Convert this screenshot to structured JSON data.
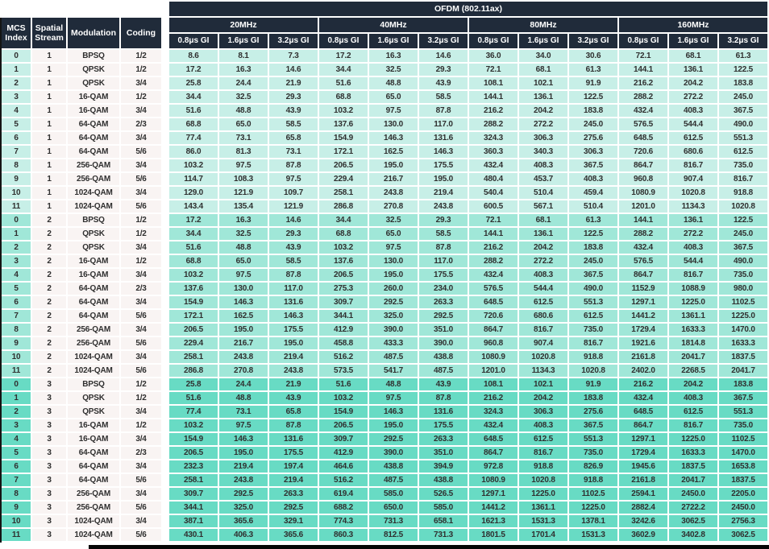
{
  "colors": {
    "header-navy": "#202b3a",
    "stream1": "#c7efe7",
    "stream2": "#a0e7d8",
    "stream3": "#68dbc4",
    "light-col": "#f9f4f3"
  },
  "table": {
    "banner": "OFDM (802.11ax)",
    "left_headers": [
      "MCS Index",
      "Spatial Stream",
      "Modulation",
      "Coding"
    ],
    "bandwidth_groups": [
      "20MHz",
      "40MHz",
      "80MHz",
      "160MHz"
    ],
    "gi_labels": [
      "0.8μs GI",
      "1.6μs GI",
      "3.2μs GI"
    ],
    "rows": [
      {
        "mcs": "0",
        "stream": "1",
        "modulation": "BPSQ",
        "coding": "1/2",
        "rates": [
          "8.6",
          "8.1",
          "7.3",
          "17.2",
          "16.3",
          "14.6",
          "36.0",
          "34.0",
          "30.6",
          "72.1",
          "68.1",
          "61.3"
        ]
      },
      {
        "mcs": "1",
        "stream": "1",
        "modulation": "QPSK",
        "coding": "1/2",
        "rates": [
          "17.2",
          "16.3",
          "14.6",
          "34.4",
          "32.5",
          "29.3",
          "72.1",
          "68.1",
          "61.3",
          "144.1",
          "136.1",
          "122.5"
        ]
      },
      {
        "mcs": "2",
        "stream": "1",
        "modulation": "QPSK",
        "coding": "3/4",
        "rates": [
          "25.8",
          "24.4",
          "21.9",
          "51.6",
          "48.8",
          "43.9",
          "108.1",
          "102.1",
          "91.9",
          "216.2",
          "204.2",
          "183.8"
        ]
      },
      {
        "mcs": "3",
        "stream": "1",
        "modulation": "16-QAM",
        "coding": "1/2",
        "rates": [
          "34.4",
          "32.5",
          "29.3",
          "68.8",
          "65.0",
          "58.5",
          "144.1",
          "136.1",
          "122.5",
          "288.2",
          "272.2",
          "245.0"
        ]
      },
      {
        "mcs": "4",
        "stream": "1",
        "modulation": "16-QAM",
        "coding": "3/4",
        "rates": [
          "51.6",
          "48.8",
          "43.9",
          "103.2",
          "97.5",
          "87.8",
          "216.2",
          "204.2",
          "183.8",
          "432.4",
          "408.3",
          "367.5"
        ]
      },
      {
        "mcs": "5",
        "stream": "1",
        "modulation": "64-QAM",
        "coding": "2/3",
        "rates": [
          "68.8",
          "65.0",
          "58.5",
          "137.6",
          "130.0",
          "117.0",
          "288.2",
          "272.2",
          "245.0",
          "576.5",
          "544.4",
          "490.0"
        ]
      },
      {
        "mcs": "6",
        "stream": "1",
        "modulation": "64-QAM",
        "coding": "3/4",
        "rates": [
          "77.4",
          "73.1",
          "65.8",
          "154.9",
          "146.3",
          "131.6",
          "324.3",
          "306.3",
          "275.6",
          "648.5",
          "612.5",
          "551.3"
        ]
      },
      {
        "mcs": "7",
        "stream": "1",
        "modulation": "64-QAM",
        "coding": "5/6",
        "rates": [
          "86.0",
          "81.3",
          "73.1",
          "172.1",
          "162.5",
          "146.3",
          "360.3",
          "340.3",
          "306.3",
          "720.6",
          "680.6",
          "612.5"
        ]
      },
      {
        "mcs": "8",
        "stream": "1",
        "modulation": "256-QAM",
        "coding": "3/4",
        "rates": [
          "103.2",
          "97.5",
          "87.8",
          "206.5",
          "195.0",
          "175.5",
          "432.4",
          "408.3",
          "367.5",
          "864.7",
          "816.7",
          "735.0"
        ]
      },
      {
        "mcs": "9",
        "stream": "1",
        "modulation": "256-QAM",
        "coding": "5/6",
        "rates": [
          "114.7",
          "108.3",
          "97.5",
          "229.4",
          "216.7",
          "195.0",
          "480.4",
          "453.7",
          "408.3",
          "960.8",
          "907.4",
          "816.7"
        ]
      },
      {
        "mcs": "10",
        "stream": "1",
        "modulation": "1024-QAM",
        "coding": "3/4",
        "rates": [
          "129.0",
          "121.9",
          "109.7",
          "258.1",
          "243.8",
          "219.4",
          "540.4",
          "510.4",
          "459.4",
          "1080.9",
          "1020.8",
          "918.8"
        ]
      },
      {
        "mcs": "11",
        "stream": "1",
        "modulation": "1024-QAM",
        "coding": "5/6",
        "rates": [
          "143.4",
          "135.4",
          "121.9",
          "286.8",
          "270.8",
          "243.8",
          "600.5",
          "567.1",
          "510.4",
          "1201.0",
          "1134.3",
          "1020.8"
        ]
      },
      {
        "mcs": "0",
        "stream": "2",
        "modulation": "BPSQ",
        "coding": "1/2",
        "rates": [
          "17.2",
          "16.3",
          "14.6",
          "34.4",
          "32.5",
          "29.3",
          "72.1",
          "68.1",
          "61.3",
          "144.1",
          "136.1",
          "122.5"
        ]
      },
      {
        "mcs": "1",
        "stream": "2",
        "modulation": "QPSK",
        "coding": "1/2",
        "rates": [
          "34.4",
          "32.5",
          "29.3",
          "68.8",
          "65.0",
          "58.5",
          "144.1",
          "136.1",
          "122.5",
          "288.2",
          "272.2",
          "245.0"
        ]
      },
      {
        "mcs": "2",
        "stream": "2",
        "modulation": "QPSK",
        "coding": "3/4",
        "rates": [
          "51.6",
          "48.8",
          "43.9",
          "103.2",
          "97.5",
          "87.8",
          "216.2",
          "204.2",
          "183.8",
          "432.4",
          "408.3",
          "367.5"
        ]
      },
      {
        "mcs": "3",
        "stream": "2",
        "modulation": "16-QAM",
        "coding": "1/2",
        "rates": [
          "68.8",
          "65.0",
          "58.5",
          "137.6",
          "130.0",
          "117.0",
          "288.2",
          "272.2",
          "245.0",
          "576.5",
          "544.4",
          "490.0"
        ]
      },
      {
        "mcs": "4",
        "stream": "2",
        "modulation": "16-QAM",
        "coding": "3/4",
        "rates": [
          "103.2",
          "97.5",
          "87.8",
          "206.5",
          "195.0",
          "175.5",
          "432.4",
          "408.3",
          "367.5",
          "864.7",
          "816.7",
          "735.0"
        ]
      },
      {
        "mcs": "5",
        "stream": "2",
        "modulation": "64-QAM",
        "coding": "2/3",
        "rates": [
          "137.6",
          "130.0",
          "117.0",
          "275.3",
          "260.0",
          "234.0",
          "576.5",
          "544.4",
          "490.0",
          "1152.9",
          "1088.9",
          "980.0"
        ]
      },
      {
        "mcs": "6",
        "stream": "2",
        "modulation": "64-QAM",
        "coding": "3/4",
        "rates": [
          "154.9",
          "146.3",
          "131.6",
          "309.7",
          "292.5",
          "263.3",
          "648.5",
          "612.5",
          "551.3",
          "1297.1",
          "1225.0",
          "1102.5"
        ]
      },
      {
        "mcs": "7",
        "stream": "2",
        "modulation": "64-QAM",
        "coding": "5/6",
        "rates": [
          "172.1",
          "162.5",
          "146.3",
          "344.1",
          "325.0",
          "292.5",
          "720.6",
          "680.6",
          "612.5",
          "1441.2",
          "1361.1",
          "1225.0"
        ]
      },
      {
        "mcs": "8",
        "stream": "2",
        "modulation": "256-QAM",
        "coding": "3/4",
        "rates": [
          "206.5",
          "195.0",
          "175.5",
          "412.9",
          "390.0",
          "351.0",
          "864.7",
          "816.7",
          "735.0",
          "1729.4",
          "1633.3",
          "1470.0"
        ]
      },
      {
        "mcs": "9",
        "stream": "2",
        "modulation": "256-QAM",
        "coding": "5/6",
        "rates": [
          "229.4",
          "216.7",
          "195.0",
          "458.8",
          "433.3",
          "390.0",
          "960.8",
          "907.4",
          "816.7",
          "1921.6",
          "1814.8",
          "1633.3"
        ]
      },
      {
        "mcs": "10",
        "stream": "2",
        "modulation": "1024-QAM",
        "coding": "3/4",
        "rates": [
          "258.1",
          "243.8",
          "219.4",
          "516.2",
          "487.5",
          "438.8",
          "1080.9",
          "1020.8",
          "918.8",
          "2161.8",
          "2041.7",
          "1837.5"
        ]
      },
      {
        "mcs": "11",
        "stream": "2",
        "modulation": "1024-QAM",
        "coding": "5/6",
        "rates": [
          "286.8",
          "270.8",
          "243.8",
          "573.5",
          "541.7",
          "487.5",
          "1201.0",
          "1134.3",
          "1020.8",
          "2402.0",
          "2268.5",
          "2041.7"
        ]
      },
      {
        "mcs": "0",
        "stream": "3",
        "modulation": "BPSQ",
        "coding": "1/2",
        "rates": [
          "25.8",
          "24.4",
          "21.9",
          "51.6",
          "48.8",
          "43.9",
          "108.1",
          "102.1",
          "91.9",
          "216.2",
          "204.2",
          "183.8"
        ]
      },
      {
        "mcs": "1",
        "stream": "3",
        "modulation": "QPSK",
        "coding": "1/2",
        "rates": [
          "51.6",
          "48.8",
          "43.9",
          "103.2",
          "97.5",
          "87.8",
          "216.2",
          "204.2",
          "183.8",
          "432.4",
          "408.3",
          "367.5"
        ]
      },
      {
        "mcs": "2",
        "stream": "3",
        "modulation": "QPSK",
        "coding": "3/4",
        "rates": [
          "77.4",
          "73.1",
          "65.8",
          "154.9",
          "146.3",
          "131.6",
          "324.3",
          "306.3",
          "275.6",
          "648.5",
          "612.5",
          "551.3"
        ]
      },
      {
        "mcs": "3",
        "stream": "3",
        "modulation": "16-QAM",
        "coding": "1/2",
        "rates": [
          "103.2",
          "97.5",
          "87.8",
          "206.5",
          "195.0",
          "175.5",
          "432.4",
          "408.3",
          "367.5",
          "864.7",
          "816.7",
          "735.0"
        ]
      },
      {
        "mcs": "4",
        "stream": "3",
        "modulation": "16-QAM",
        "coding": "3/4",
        "rates": [
          "154.9",
          "146.3",
          "131.6",
          "309.7",
          "292.5",
          "263.3",
          "648.5",
          "612.5",
          "551.3",
          "1297.1",
          "1225.0",
          "1102.5"
        ]
      },
      {
        "mcs": "5",
        "stream": "3",
        "modulation": "64-QAM",
        "coding": "2/3",
        "rates": [
          "206.5",
          "195.0",
          "175.5",
          "412.9",
          "390.0",
          "351.0",
          "864.7",
          "816.7",
          "735.0",
          "1729.4",
          "1633.3",
          "1470.0"
        ]
      },
      {
        "mcs": "6",
        "stream": "3",
        "modulation": "64-QAM",
        "coding": "3/4",
        "rates": [
          "232.3",
          "219.4",
          "197.4",
          "464.6",
          "438.8",
          "394.9",
          "972.8",
          "918.8",
          "826.9",
          "1945.6",
          "1837.5",
          "1653.8"
        ]
      },
      {
        "mcs": "7",
        "stream": "3",
        "modulation": "64-QAM",
        "coding": "5/6",
        "rates": [
          "258.1",
          "243.8",
          "219.4",
          "516.2",
          "487.5",
          "438.8",
          "1080.9",
          "1020.8",
          "918.8",
          "2161.8",
          "2041.7",
          "1837.5"
        ]
      },
      {
        "mcs": "8",
        "stream": "3",
        "modulation": "256-QAM",
        "coding": "3/4",
        "rates": [
          "309.7",
          "292.5",
          "263.3",
          "619.4",
          "585.0",
          "526.5",
          "1297.1",
          "1225.0",
          "1102.5",
          "2594.1",
          "2450.0",
          "2205.0"
        ]
      },
      {
        "mcs": "9",
        "stream": "3",
        "modulation": "256-QAM",
        "coding": "5/6",
        "rates": [
          "344.1",
          "325.0",
          "292.5",
          "688.2",
          "650.0",
          "585.0",
          "1441.2",
          "1361.1",
          "1225.0",
          "2882.4",
          "2722.2",
          "2450.0"
        ]
      },
      {
        "mcs": "10",
        "stream": "3",
        "modulation": "1024-QAM",
        "coding": "3/4",
        "rates": [
          "387.1",
          "365.6",
          "329.1",
          "774.3",
          "731.3",
          "658.1",
          "1621.3",
          "1531.3",
          "1378.1",
          "3242.6",
          "3062.5",
          "2756.3"
        ]
      },
      {
        "mcs": "11",
        "stream": "3",
        "modulation": "1024-QAM",
        "coding": "5/6",
        "rates": [
          "430.1",
          "406.3",
          "365.6",
          "860.3",
          "812.5",
          "731.3",
          "1801.5",
          "1701.4",
          "1531.3",
          "3602.9",
          "3402.8",
          "3062.5"
        ]
      }
    ]
  }
}
